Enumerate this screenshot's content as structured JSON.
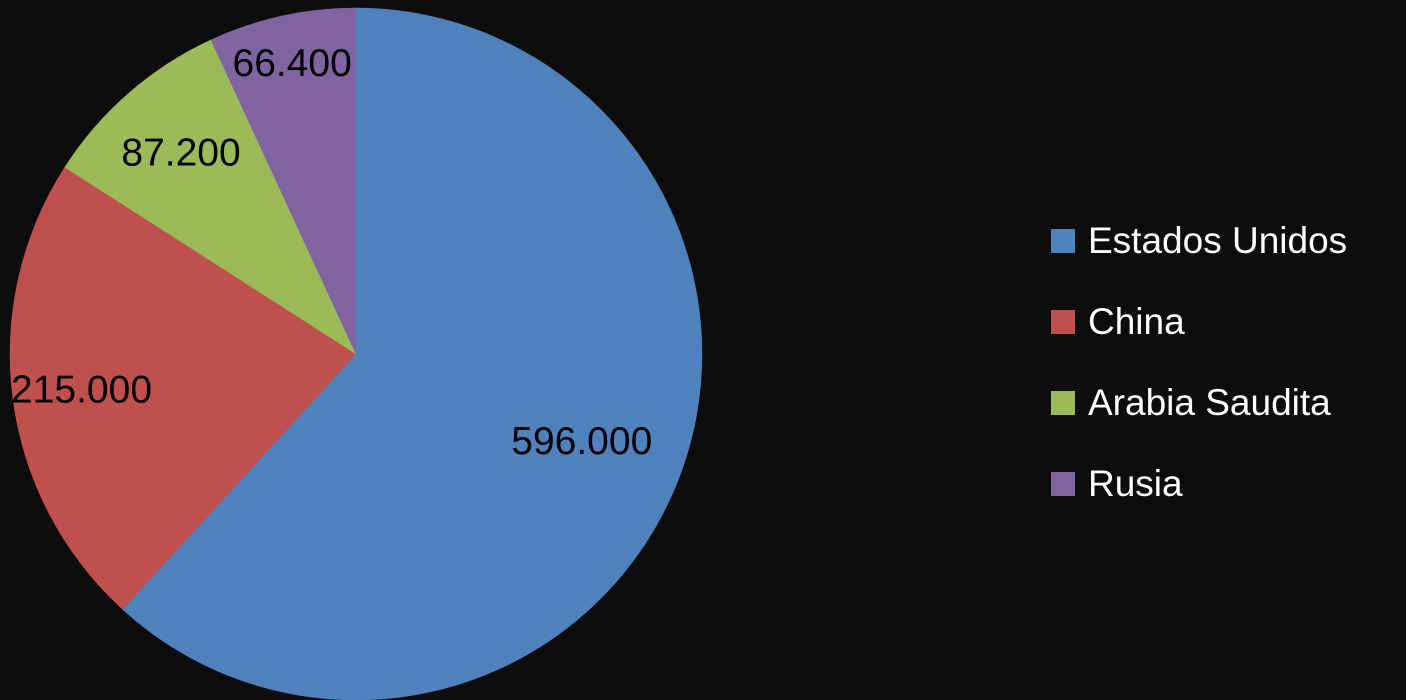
{
  "chart_data": {
    "type": "pie",
    "title": "",
    "legend_position": "right",
    "slices": [
      {
        "name": "Estados Unidos",
        "value": 596000,
        "label": "596.000",
        "color": "#4f81bd"
      },
      {
        "name": "China",
        "value": 215000,
        "label": "215.000",
        "color": "#c0504d"
      },
      {
        "name": "Arabia Saudita",
        "value": 87200,
        "label": "87.200",
        "color": "#9bbb59"
      },
      {
        "name": "Rusia",
        "value": 66400,
        "label": "66.400",
        "color": "#8064a2"
      }
    ]
  }
}
